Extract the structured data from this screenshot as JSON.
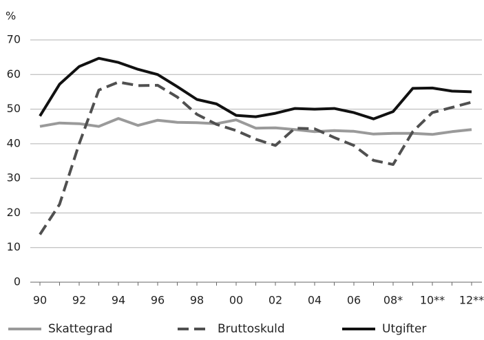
{
  "chart_data": {
    "type": "line",
    "y_unit": "%",
    "categories": [
      "90",
      null,
      "92",
      null,
      "94",
      null,
      "96",
      null,
      "98",
      null,
      "00",
      null,
      "02",
      null,
      "04",
      null,
      "06",
      null,
      "08*",
      null,
      "10**",
      null,
      "12**"
    ],
    "series": [
      {
        "name": "Skattegrad",
        "color": "#9a9a9a",
        "dashed": false,
        "values": [
          45,
          46,
          45.8,
          45,
          47.3,
          45.3,
          46.8,
          46.2,
          46.1,
          45.8,
          46.9,
          44.5,
          44.6,
          44.1,
          43.5,
          43.8,
          43.6,
          42.8,
          43,
          43,
          42.7,
          43.5,
          44.1
        ]
      },
      {
        "name": "Bruttoskuld",
        "color": "#505050",
        "dashed": true,
        "values": [
          13.8,
          22.5,
          40,
          55.5,
          57.8,
          56.8,
          56.9,
          53.5,
          48.5,
          45.6,
          43.8,
          41.3,
          39.5,
          44.5,
          44.3,
          41.8,
          39.5,
          35.2,
          34,
          43.5,
          49,
          50.5,
          52
        ]
      },
      {
        "name": "Utgifter",
        "color": "#111111",
        "dashed": false,
        "values": [
          48,
          57.2,
          62.3,
          64.7,
          63.5,
          61.5,
          60,
          56.5,
          52.8,
          51.5,
          48.2,
          47.8,
          48.8,
          50.2,
          50,
          50.2,
          49,
          47.2,
          49.3,
          56,
          56.1,
          55.2,
          55
        ]
      }
    ],
    "ylim": [
      0,
      70
    ],
    "yticks": [
      0,
      10,
      20,
      30,
      40,
      50,
      60,
      70
    ],
    "grid": true,
    "legend": "bottom"
  }
}
